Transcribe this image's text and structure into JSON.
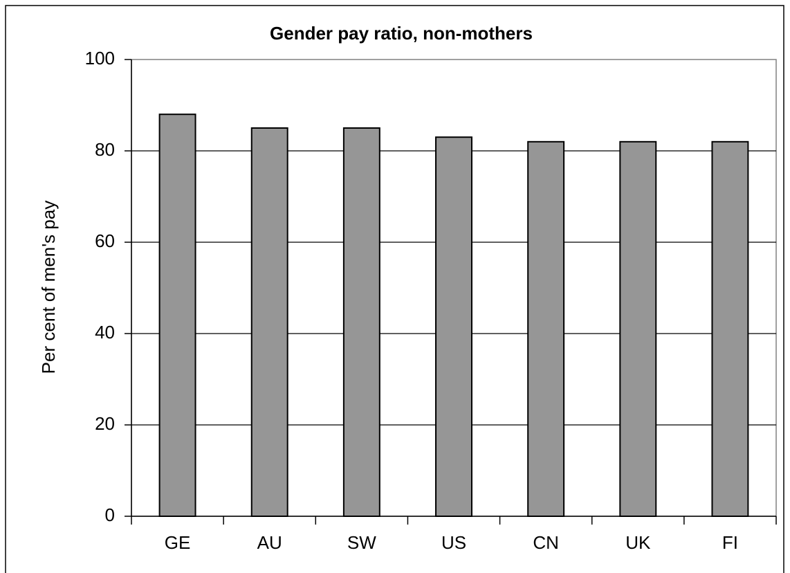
{
  "chart_data": {
    "type": "bar",
    "title": "Gender pay ratio, non-mothers",
    "y_label": "Per cent of men's pay",
    "categories": [
      "GE",
      "AU",
      "SW",
      "US",
      "CN",
      "UK",
      "FI"
    ],
    "values": [
      88,
      85,
      85,
      83,
      82,
      82,
      82
    ],
    "color": "#969696",
    "ylim": [
      0,
      100
    ],
    "yticks": [
      0,
      20,
      40,
      60,
      80,
      100
    ],
    "grid": true
  }
}
